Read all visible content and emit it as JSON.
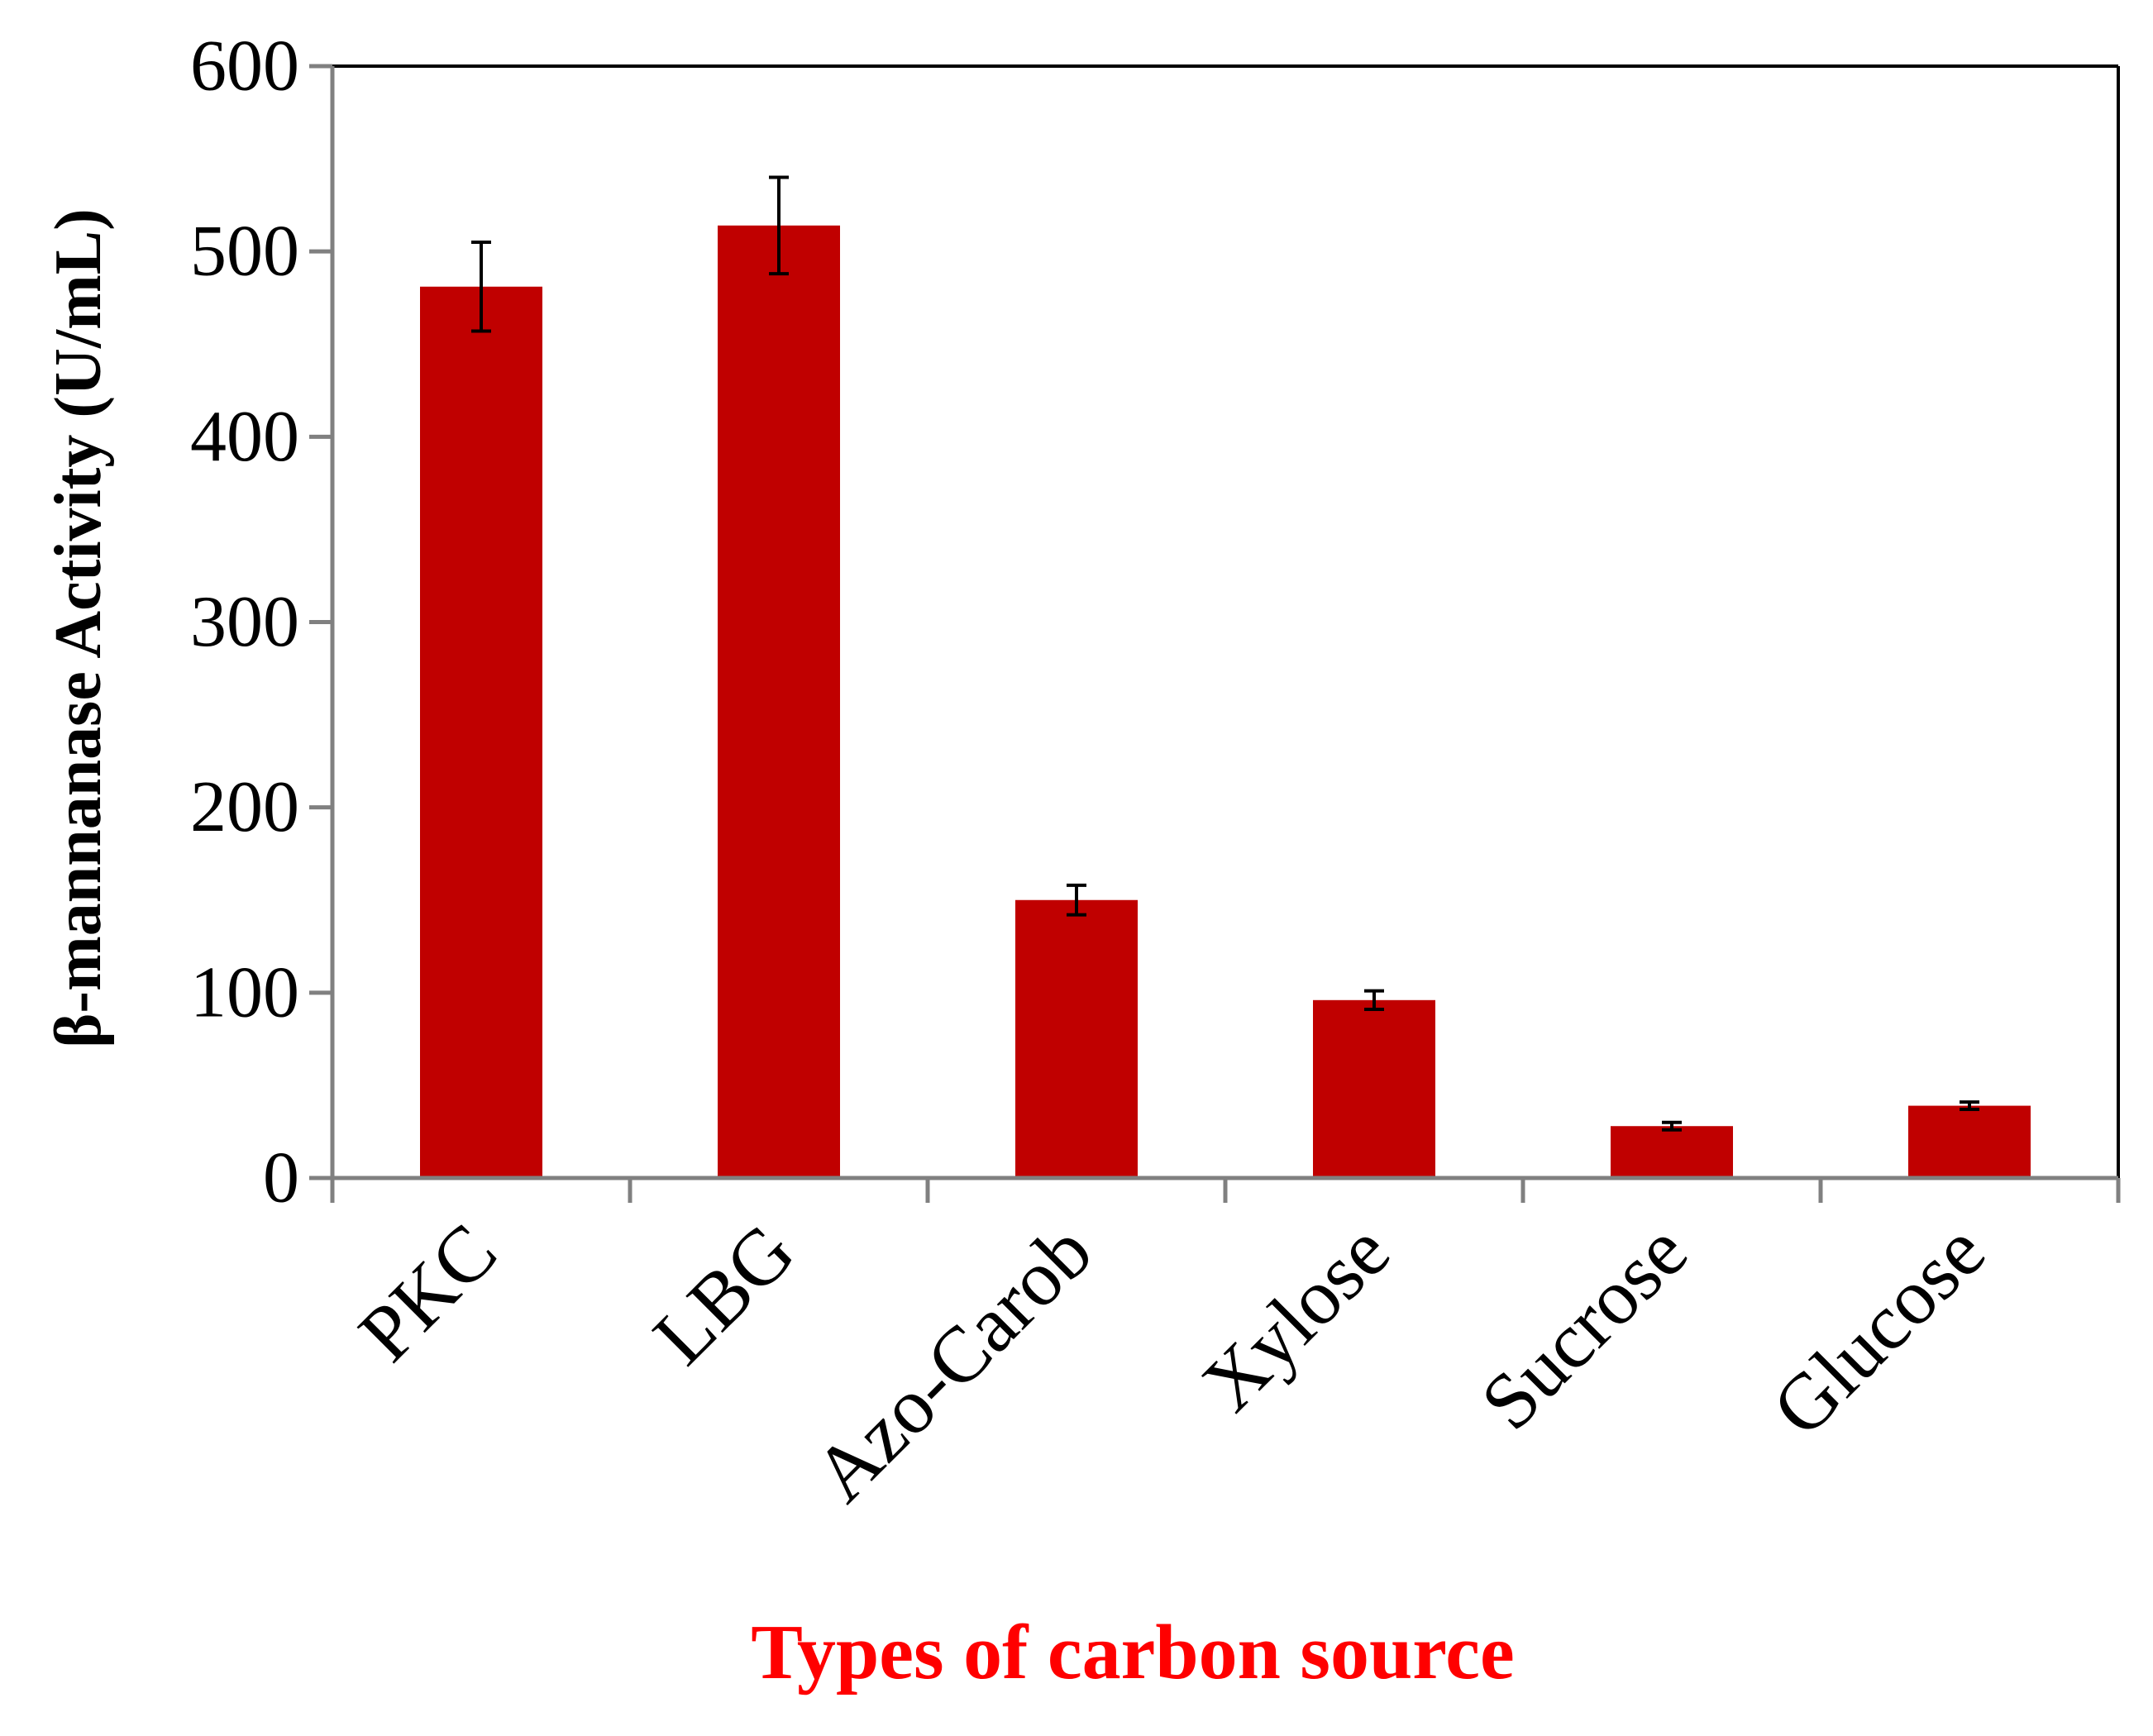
{
  "chart_data": {
    "type": "bar",
    "title": "",
    "xlabel": "Types of carbon source",
    "ylabel": "β-mannanase Activity (U/mL)",
    "categories": [
      "PKC",
      "LBG",
      "Azo-Carob",
      "Xylose",
      "Sucrose",
      "Glucose"
    ],
    "values": [
      481,
      514,
      150,
      96,
      28,
      39
    ],
    "errors": [
      24,
      26,
      8,
      5,
      2,
      2
    ],
    "ylim": [
      0,
      600
    ],
    "yticks": [
      "0",
      "100",
      "200",
      "300",
      "400",
      "500",
      "600"
    ],
    "grid": false,
    "legend": "none",
    "colors": {
      "bar": "#c00000",
      "xlabel": "#ff0000",
      "axis": "#808080",
      "frame": "#000000",
      "error": "#000000"
    }
  }
}
